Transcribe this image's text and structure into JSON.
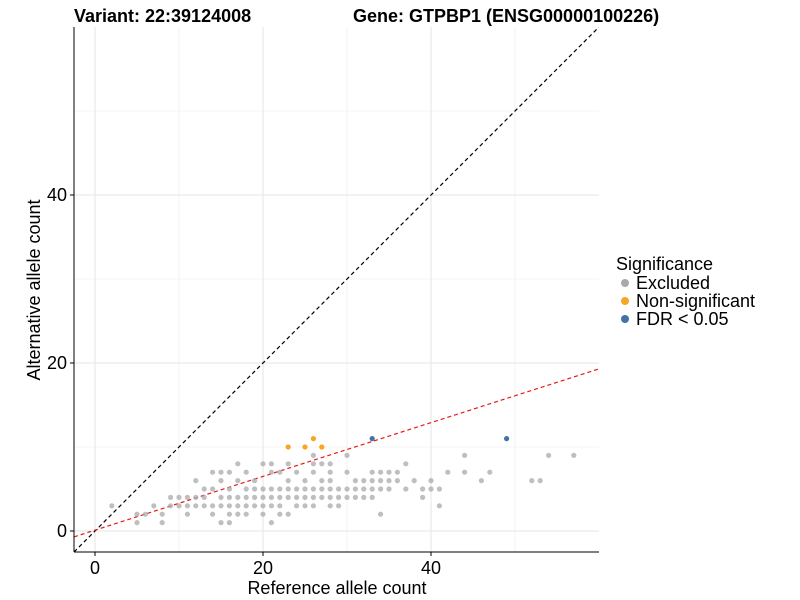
{
  "chart_data": {
    "type": "scatter",
    "title_left": "Variant: 22:39124008",
    "title_right": "Gene: GTPBP1 (ENSG00000100226)",
    "xlabel": "Reference allele count",
    "ylabel": "Alternative allele count",
    "xlim": [
      -2.5,
      60
    ],
    "ylim": [
      -2.5,
      60
    ],
    "x_ticks": [
      0,
      20,
      40
    ],
    "y_ticks": [
      0,
      20,
      40
    ],
    "grid": true,
    "legend": {
      "title": "Significance",
      "position": "right",
      "entries": [
        {
          "key": "excluded",
          "label": "Excluded"
        },
        {
          "key": "nonsig",
          "label": "Non-significant"
        },
        {
          "key": "fdr",
          "label": "FDR < 0.05"
        }
      ]
    },
    "colors": {
      "excluded": "#a9a9a9",
      "nonsig": "#f5a623",
      "fdr": "#4472a8",
      "diagonal": "#000000",
      "fit": "#e41a1c"
    },
    "reference_lines": [
      {
        "name": "identity",
        "intercept": 0,
        "slope": 1,
        "style": "dashed",
        "color_key": "diagonal"
      },
      {
        "name": "fit",
        "intercept": 0.1,
        "slope": 0.32,
        "style": "dashed",
        "color_key": "fit"
      }
    ],
    "series": [
      {
        "name": "Excluded",
        "color_key": "excluded",
        "points": [
          [
            2,
            3
          ],
          [
            5,
            1
          ],
          [
            5,
            2
          ],
          [
            6,
            2
          ],
          [
            7,
            3
          ],
          [
            8,
            1
          ],
          [
            8,
            2
          ],
          [
            9,
            3
          ],
          [
            9,
            4
          ],
          [
            10,
            3
          ],
          [
            10,
            4
          ],
          [
            11,
            2
          ],
          [
            11,
            3
          ],
          [
            11,
            4
          ],
          [
            12,
            3
          ],
          [
            12,
            4
          ],
          [
            12,
            6
          ],
          [
            13,
            3
          ],
          [
            13,
            4
          ],
          [
            13,
            5
          ],
          [
            14,
            2
          ],
          [
            14,
            3
          ],
          [
            14,
            5
          ],
          [
            14,
            7
          ],
          [
            15,
            1
          ],
          [
            15,
            3
          ],
          [
            15,
            4
          ],
          [
            15,
            6
          ],
          [
            15,
            7
          ],
          [
            16,
            1
          ],
          [
            16,
            2
          ],
          [
            16,
            3
          ],
          [
            16,
            4
          ],
          [
            16,
            5
          ],
          [
            16,
            7
          ],
          [
            17,
            2
          ],
          [
            17,
            3
          ],
          [
            17,
            4
          ],
          [
            17,
            6
          ],
          [
            17,
            8
          ],
          [
            18,
            2
          ],
          [
            18,
            3
          ],
          [
            18,
            4
          ],
          [
            18,
            5
          ],
          [
            18,
            7
          ],
          [
            19,
            3
          ],
          [
            19,
            4
          ],
          [
            19,
            5
          ],
          [
            19,
            6
          ],
          [
            20,
            2
          ],
          [
            20,
            3
          ],
          [
            20,
            4
          ],
          [
            20,
            5
          ],
          [
            20,
            8
          ],
          [
            21,
            1
          ],
          [
            21,
            3
          ],
          [
            21,
            4
          ],
          [
            21,
            5
          ],
          [
            21,
            7
          ],
          [
            21,
            8
          ],
          [
            22,
            2
          ],
          [
            22,
            3
          ],
          [
            22,
            4
          ],
          [
            22,
            5
          ],
          [
            22,
            7
          ],
          [
            23,
            2
          ],
          [
            23,
            4
          ],
          [
            23,
            5
          ],
          [
            23,
            6
          ],
          [
            23,
            8
          ],
          [
            24,
            3
          ],
          [
            24,
            4
          ],
          [
            24,
            5
          ],
          [
            24,
            7
          ],
          [
            25,
            3
          ],
          [
            25,
            4
          ],
          [
            25,
            5
          ],
          [
            25,
            6
          ],
          [
            26,
            3
          ],
          [
            26,
            4
          ],
          [
            26,
            5
          ],
          [
            26,
            7
          ],
          [
            26,
            8
          ],
          [
            26,
            9
          ],
          [
            27,
            4
          ],
          [
            27,
            5
          ],
          [
            27,
            6
          ],
          [
            27,
            8
          ],
          [
            28,
            3
          ],
          [
            28,
            4
          ],
          [
            28,
            5
          ],
          [
            28,
            6
          ],
          [
            28,
            7
          ],
          [
            28,
            8
          ],
          [
            29,
            3
          ],
          [
            29,
            4
          ],
          [
            29,
            5
          ],
          [
            30,
            4
          ],
          [
            30,
            5
          ],
          [
            30,
            7
          ],
          [
            30,
            9
          ],
          [
            31,
            4
          ],
          [
            31,
            5
          ],
          [
            31,
            6
          ],
          [
            32,
            4
          ],
          [
            32,
            5
          ],
          [
            32,
            6
          ],
          [
            33,
            4
          ],
          [
            33,
            5
          ],
          [
            33,
            6
          ],
          [
            33,
            7
          ],
          [
            34,
            2
          ],
          [
            34,
            5
          ],
          [
            34,
            6
          ],
          [
            34,
            7
          ],
          [
            35,
            5
          ],
          [
            35,
            6
          ],
          [
            35,
            7
          ],
          [
            36,
            6
          ],
          [
            36,
            7
          ],
          [
            37,
            5
          ],
          [
            37,
            8
          ],
          [
            38,
            6
          ],
          [
            39,
            4
          ],
          [
            39,
            5
          ],
          [
            40,
            5
          ],
          [
            40,
            6
          ],
          [
            41,
            3
          ],
          [
            41,
            5
          ],
          [
            42,
            7
          ],
          [
            44,
            7
          ],
          [
            44,
            9
          ],
          [
            46,
            6
          ],
          [
            47,
            7
          ],
          [
            52,
            6
          ],
          [
            53,
            6
          ],
          [
            54,
            9
          ],
          [
            57,
            9
          ]
        ]
      },
      {
        "name": "Non-significant",
        "color_key": "nonsig",
        "points": [
          [
            23,
            10
          ],
          [
            25,
            10
          ],
          [
            26,
            11
          ],
          [
            27,
            10
          ]
        ]
      },
      {
        "name": "FDR < 0.05",
        "color_key": "fdr",
        "points": [
          [
            33,
            11
          ],
          [
            49,
            11
          ]
        ]
      }
    ]
  }
}
